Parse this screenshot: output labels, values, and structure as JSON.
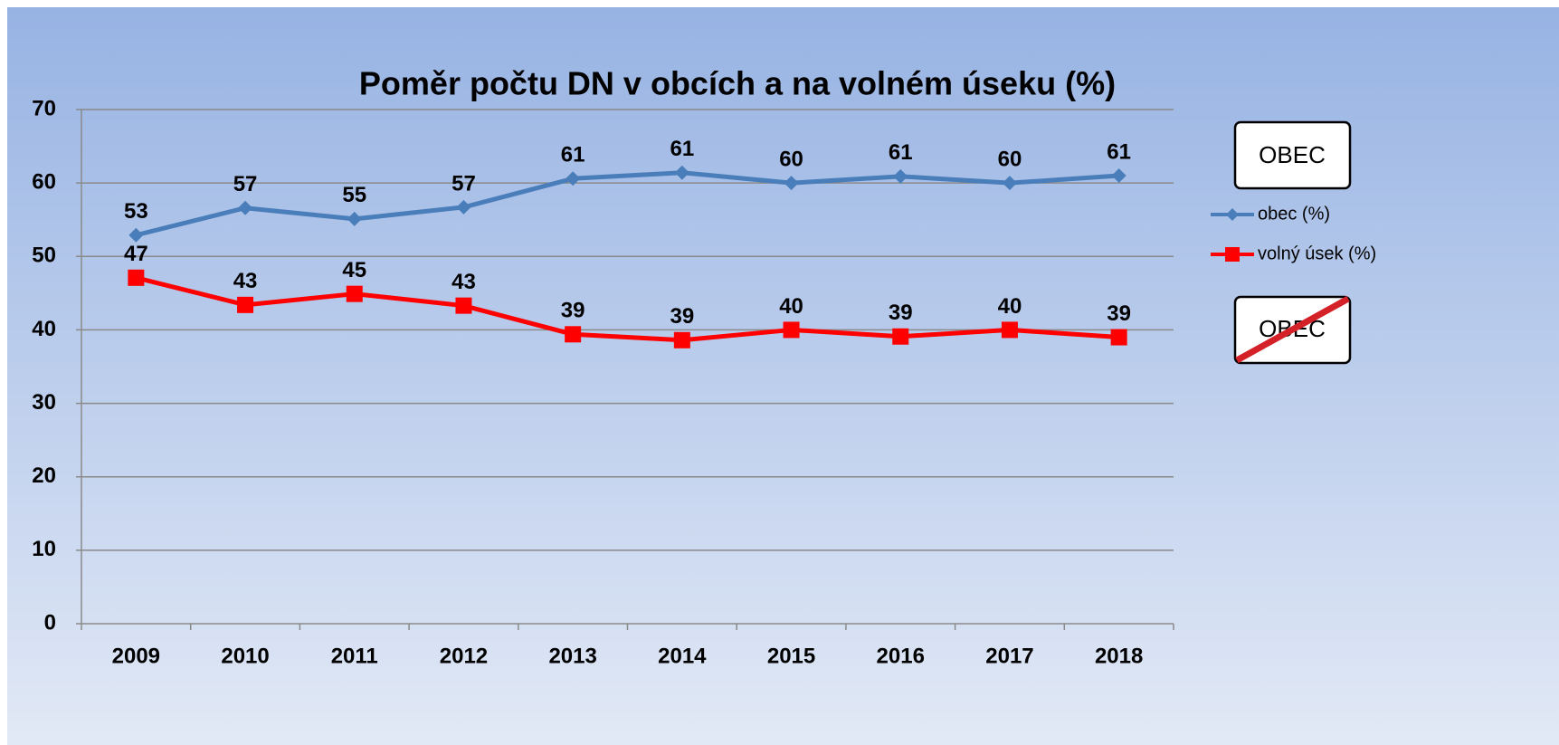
{
  "chart_data": {
    "type": "line",
    "title": "Poměr počtu DN v obcích a na volném úseku (%)",
    "categories": [
      "2009",
      "2010",
      "2011",
      "2012",
      "2013",
      "2014",
      "2015",
      "2016",
      "2017",
      "2018"
    ],
    "series": [
      {
        "name": "obec (%)",
        "color": "#4a7ebb",
        "marker": "diamond",
        "values": [
          52.9,
          56.6,
          55.1,
          56.7,
          60.6,
          61.4,
          60.0,
          60.9,
          60.0,
          61.0
        ],
        "value_labels": [
          "53",
          "57",
          "55",
          "57",
          "61",
          "61",
          "60",
          "61",
          "60",
          "61"
        ]
      },
      {
        "name": "volný úsek (%)",
        "color": "#ff0000",
        "marker": "square",
        "values": [
          47.1,
          43.4,
          44.9,
          43.3,
          39.4,
          38.6,
          40.0,
          39.1,
          40.0,
          39.0
        ],
        "value_labels": [
          "47",
          "43",
          "45",
          "43",
          "39",
          "39",
          "40",
          "39",
          "40",
          "39"
        ]
      }
    ],
    "ylim": [
      0,
      70
    ],
    "yticks": [
      0,
      10,
      20,
      30,
      40,
      50,
      60,
      70
    ],
    "grid": true,
    "legend": "right",
    "annotations": [
      "OBEC",
      "OBEC"
    ]
  }
}
